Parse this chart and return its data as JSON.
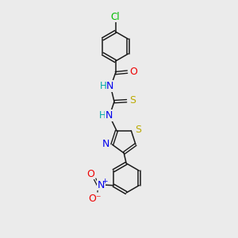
{
  "background_color": "#ebebeb",
  "bond_color": "#1a1a1a",
  "bond_width": 1.4,
  "atom_colors": {
    "H": "#00aaaa",
    "N": "#0000ee",
    "O": "#ee0000",
    "S": "#bbaa00",
    "Cl": "#00bb00"
  },
  "figsize": [
    3.0,
    3.0
  ],
  "dpi": 100
}
